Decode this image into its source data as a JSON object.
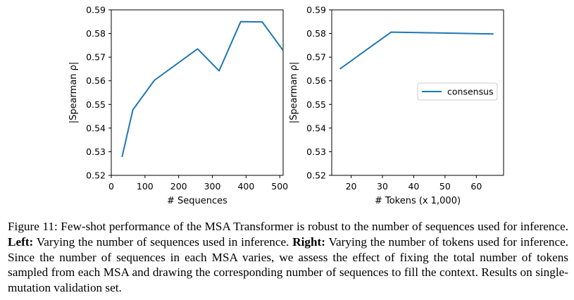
{
  "chart_data": [
    {
      "type": "line",
      "panel": "left",
      "xlabel": "# Sequences",
      "ylabel": "|Spearman ρ|",
      "xlim": [
        0,
        510
      ],
      "ylim": [
        0.52,
        0.59
      ],
      "xticks": [
        0,
        100,
        200,
        300,
        400,
        500
      ],
      "yticks": [
        0.52,
        0.53,
        0.54,
        0.55,
        0.56,
        0.57,
        0.58,
        0.59
      ],
      "ytick_labels": [
        "0.52",
        "0.53",
        "0.54",
        "0.55",
        "0.56",
        "0.57",
        "0.58",
        "0.59"
      ],
      "series": [
        {
          "name": "",
          "color": "#1f77b4",
          "x": [
            32,
            64,
            128,
            256,
            320,
            384,
            448,
            512
          ],
          "y": [
            0.5278,
            0.5477,
            0.5602,
            0.5735,
            0.5642,
            0.585,
            0.5849,
            0.5728
          ]
        }
      ]
    },
    {
      "type": "line",
      "panel": "right",
      "xlabel": "# Tokens (x 1,000)",
      "ylabel": "|Spearman ρ|",
      "xlim": [
        13.8,
        68.7
      ],
      "ylim": [
        0.52,
        0.59
      ],
      "xticks": [
        20,
        30,
        40,
        50,
        60
      ],
      "yticks": [
        0.52,
        0.53,
        0.54,
        0.55,
        0.56,
        0.57,
        0.58,
        0.59
      ],
      "ytick_labels": [
        "0.52",
        "0.53",
        "0.54",
        "0.55",
        "0.56",
        "0.57",
        "0.58",
        "0.59"
      ],
      "legend": {
        "entries": [
          "consensus"
        ],
        "placement": "center-right"
      },
      "series": [
        {
          "name": "consensus",
          "color": "#1f77b4",
          "x": [
            16.4,
            32.8,
            65.5
          ],
          "y": [
            0.565,
            0.5806,
            0.5798
          ]
        }
      ]
    }
  ],
  "caption": {
    "part1": "Figure 11: Few-shot performance of the MSA Transformer is robust to the number of sequences used for inference. ",
    "left_label": "Left:",
    "part2": " Varying the number of sequences used in inference. ",
    "right_label": "Right:",
    "part3": " Varying the number of tokens used for inference. Since the number of sequences in each MSA varies, we assess the effect of fixing the total number of tokens sampled from each MSA and drawing the corresponding number of sequences to fill the context. Results on single-mutation validation set."
  }
}
